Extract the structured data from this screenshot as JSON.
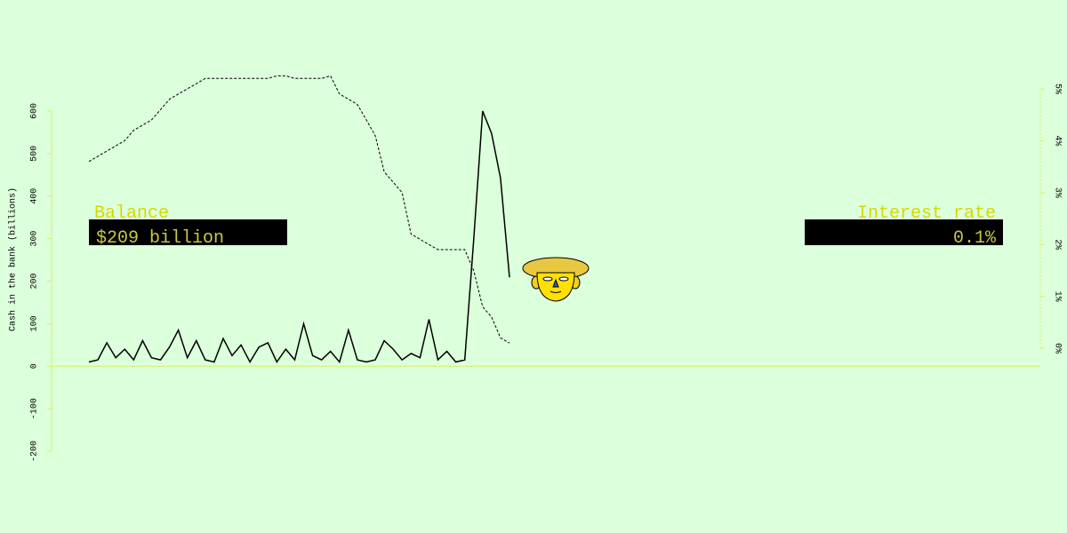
{
  "chart_data": {
    "type": "line",
    "y_label": "Cash in the bank (billions)",
    "ylim": [
      -200,
      600
    ],
    "yticks": [
      -200,
      -100,
      0,
      100,
      200,
      300,
      400,
      500,
      600
    ],
    "y2lim": [
      0,
      5
    ],
    "y2ticks": [
      {
        "value": 0,
        "label": "0%"
      },
      {
        "value": 1,
        "label": "1%"
      },
      {
        "value": 2,
        "label": "2%"
      },
      {
        "value": 3,
        "label": "3%"
      },
      {
        "value": 4,
        "label": "4%"
      },
      {
        "value": 5,
        "label": "5%"
      }
    ],
    "axis_color": "#d8f060",
    "series": [
      {
        "name": "Balance",
        "color": "#000000",
        "values": [
          10,
          15,
          55,
          20,
          40,
          15,
          60,
          20,
          15,
          45,
          85,
          20,
          60,
          15,
          10,
          65,
          25,
          50,
          10,
          45,
          55,
          10,
          40,
          15,
          100,
          25,
          15,
          35,
          10,
          85,
          15,
          10,
          15,
          60,
          40,
          15,
          30,
          20,
          110,
          15,
          35,
          10,
          15,
          296,
          600,
          547,
          442,
          209
        ]
      },
      {
        "name": "Interest rate",
        "color": "#000000",
        "axis": "y2",
        "dashed": true,
        "values": [
          3.6,
          3.7,
          3.8,
          3.9,
          4.0,
          4.2,
          4.3,
          4.4,
          4.6,
          4.8,
          4.9,
          5.0,
          5.1,
          5.2,
          5.2,
          5.2,
          5.2,
          5.2,
          5.2,
          5.2,
          5.2,
          5.25,
          5.25,
          5.2,
          5.2,
          5.2,
          5.2,
          5.25,
          4.9,
          4.8,
          4.7,
          4.4,
          4.1,
          3.4,
          3.2,
          3.0,
          2.2,
          2.1,
          2.0,
          1.9,
          1.9,
          1.9,
          1.9,
          1.5,
          0.8,
          0.6,
          0.2,
          0.1
        ]
      }
    ]
  },
  "hud": {
    "balance_label": "Balance",
    "balance_value": "$209 billion",
    "rate_label": "Interest rate",
    "rate_value": "0.1%"
  }
}
